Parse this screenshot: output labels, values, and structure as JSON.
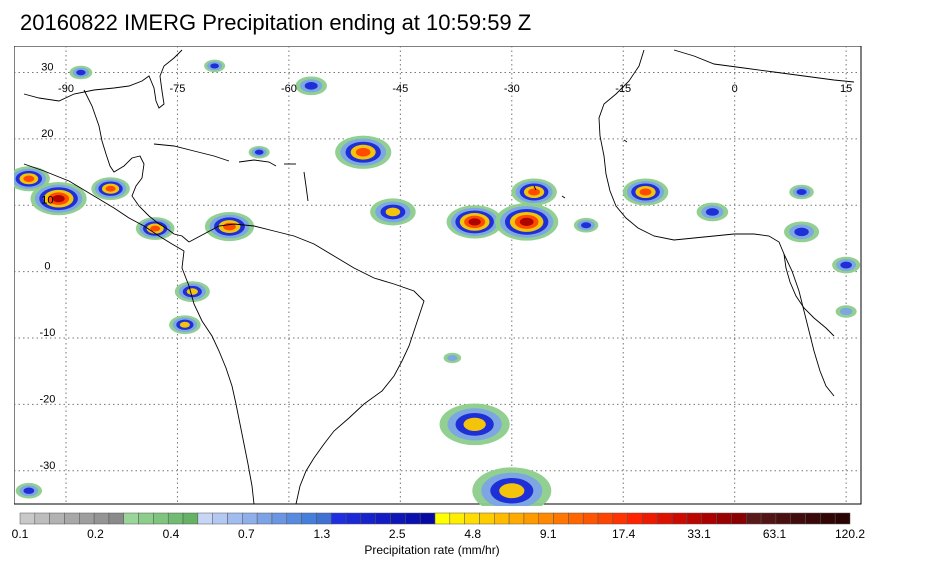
{
  "title": "20160822 IMERG Precipitation ending at 10:59:59 Z",
  "map": {
    "lon_range": [
      -97,
      17
    ],
    "lat_range": [
      -35,
      34
    ],
    "lon_labels": [
      {
        "value": -90,
        "text": "-90"
      },
      {
        "value": -75,
        "text": "-75"
      },
      {
        "value": -60,
        "text": "-60"
      },
      {
        "value": -45,
        "text": "-45"
      },
      {
        "value": -30,
        "text": "-30"
      },
      {
        "value": -15,
        "text": "-15"
      },
      {
        "value": 0,
        "text": "0"
      },
      {
        "value": 15,
        "text": "15"
      }
    ],
    "lat_labels": [
      {
        "value": 30,
        "text": "30"
      },
      {
        "value": 20,
        "text": "20"
      },
      {
        "value": 10,
        "text": "10"
      },
      {
        "value": 0,
        "text": "0"
      },
      {
        "value": -10,
        "text": "-10"
      },
      {
        "value": -20,
        "text": "-20"
      },
      {
        "value": -30,
        "text": "-30"
      }
    ],
    "gridlines": "dotted",
    "precip_cells": [
      {
        "lon": -91,
        "lat": 11,
        "size": 3.2,
        "level": 5
      },
      {
        "lon": -95,
        "lat": 14,
        "size": 2.4,
        "level": 4
      },
      {
        "lon": -84,
        "lat": 12.5,
        "size": 2.2,
        "level": 4
      },
      {
        "lon": -78,
        "lat": 6.5,
        "size": 2.2,
        "level": 4
      },
      {
        "lon": -68,
        "lat": 6.8,
        "size": 2.8,
        "level": 4
      },
      {
        "lon": -73,
        "lat": -3,
        "size": 2,
        "level": 3
      },
      {
        "lon": -74,
        "lat": -8,
        "size": 1.8,
        "level": 3
      },
      {
        "lon": -50,
        "lat": 18,
        "size": 3.2,
        "level": 4
      },
      {
        "lon": -46,
        "lat": 9,
        "size": 2.6,
        "level": 3
      },
      {
        "lon": -35,
        "lat": 7.5,
        "size": 3.2,
        "level": 5
      },
      {
        "lon": -28,
        "lat": 7.5,
        "size": 3.6,
        "level": 5
      },
      {
        "lon": -27,
        "lat": 12,
        "size": 2.6,
        "level": 4
      },
      {
        "lon": -12,
        "lat": 12,
        "size": 2.6,
        "level": 4
      },
      {
        "lon": -57,
        "lat": 28,
        "size": 1.8,
        "level": 2
      },
      {
        "lon": -35,
        "lat": -23,
        "size": 4,
        "level": 3
      },
      {
        "lon": -30,
        "lat": -33,
        "size": 4.5,
        "level": 3
      },
      {
        "lon": -95,
        "lat": -33,
        "size": 1.5,
        "level": 2
      },
      {
        "lon": -3,
        "lat": 9,
        "size": 1.8,
        "level": 2
      },
      {
        "lon": 9,
        "lat": 6,
        "size": 2,
        "level": 2
      },
      {
        "lon": 15,
        "lat": 1,
        "size": 1.6,
        "level": 2
      },
      {
        "lon": 9,
        "lat": 12,
        "size": 1.4,
        "level": 2
      },
      {
        "lon": -20,
        "lat": 7,
        "size": 1.4,
        "level": 2
      },
      {
        "lon": -64,
        "lat": 18,
        "size": 1.2,
        "level": 2
      },
      {
        "lon": -88,
        "lat": 30,
        "size": 1.3,
        "level": 2
      },
      {
        "lon": -70,
        "lat": 31,
        "size": 1.2,
        "level": 2
      },
      {
        "lon": 15,
        "lat": -6,
        "size": 1.2,
        "level": 1
      },
      {
        "lon": -38,
        "lat": -13,
        "size": 1,
        "level": 1
      }
    ]
  },
  "colorbar": {
    "title": "Precipitation rate (mm/hr)",
    "colors": [
      "#c8c8c8",
      "#bdbdbd",
      "#b2b2b2",
      "#a8a8a8",
      "#9e9e9e",
      "#949494",
      "#8a8a8a",
      "#9ad59a",
      "#8ccd8c",
      "#7fc47f",
      "#72bb72",
      "#65b265",
      "#c6d6f4",
      "#b4c9f1",
      "#a1bcee",
      "#8fafeb",
      "#7da3e7",
      "#6a96e3",
      "#588adf",
      "#467edb",
      "#3f70d3",
      "#1e2ee0",
      "#1a28d6",
      "#1622cc",
      "#121cc2",
      "#0e16b8",
      "#0a10ae",
      "#060aa4",
      "#ffff00",
      "#ffee00",
      "#ffdd00",
      "#ffcc00",
      "#ffbb00",
      "#ffaa00",
      "#ff9900",
      "#ff8800",
      "#ff7700",
      "#ff6600",
      "#ff5500",
      "#ff4400",
      "#ff3300",
      "#ff2200",
      "#ee1a00",
      "#dd1100",
      "#cc0a00",
      "#bb0500",
      "#aa0000",
      "#990000",
      "#880000",
      "#5a1818",
      "#521414",
      "#4a1010",
      "#420c0c",
      "#3a0808",
      "#320505",
      "#2a0303"
    ],
    "labels": [
      "0.1",
      "0.2",
      "0.4",
      "0.7",
      "1.3",
      "2.5",
      "4.8",
      "9.1",
      "17.4",
      "33.1",
      "63.1",
      "120.2"
    ]
  }
}
